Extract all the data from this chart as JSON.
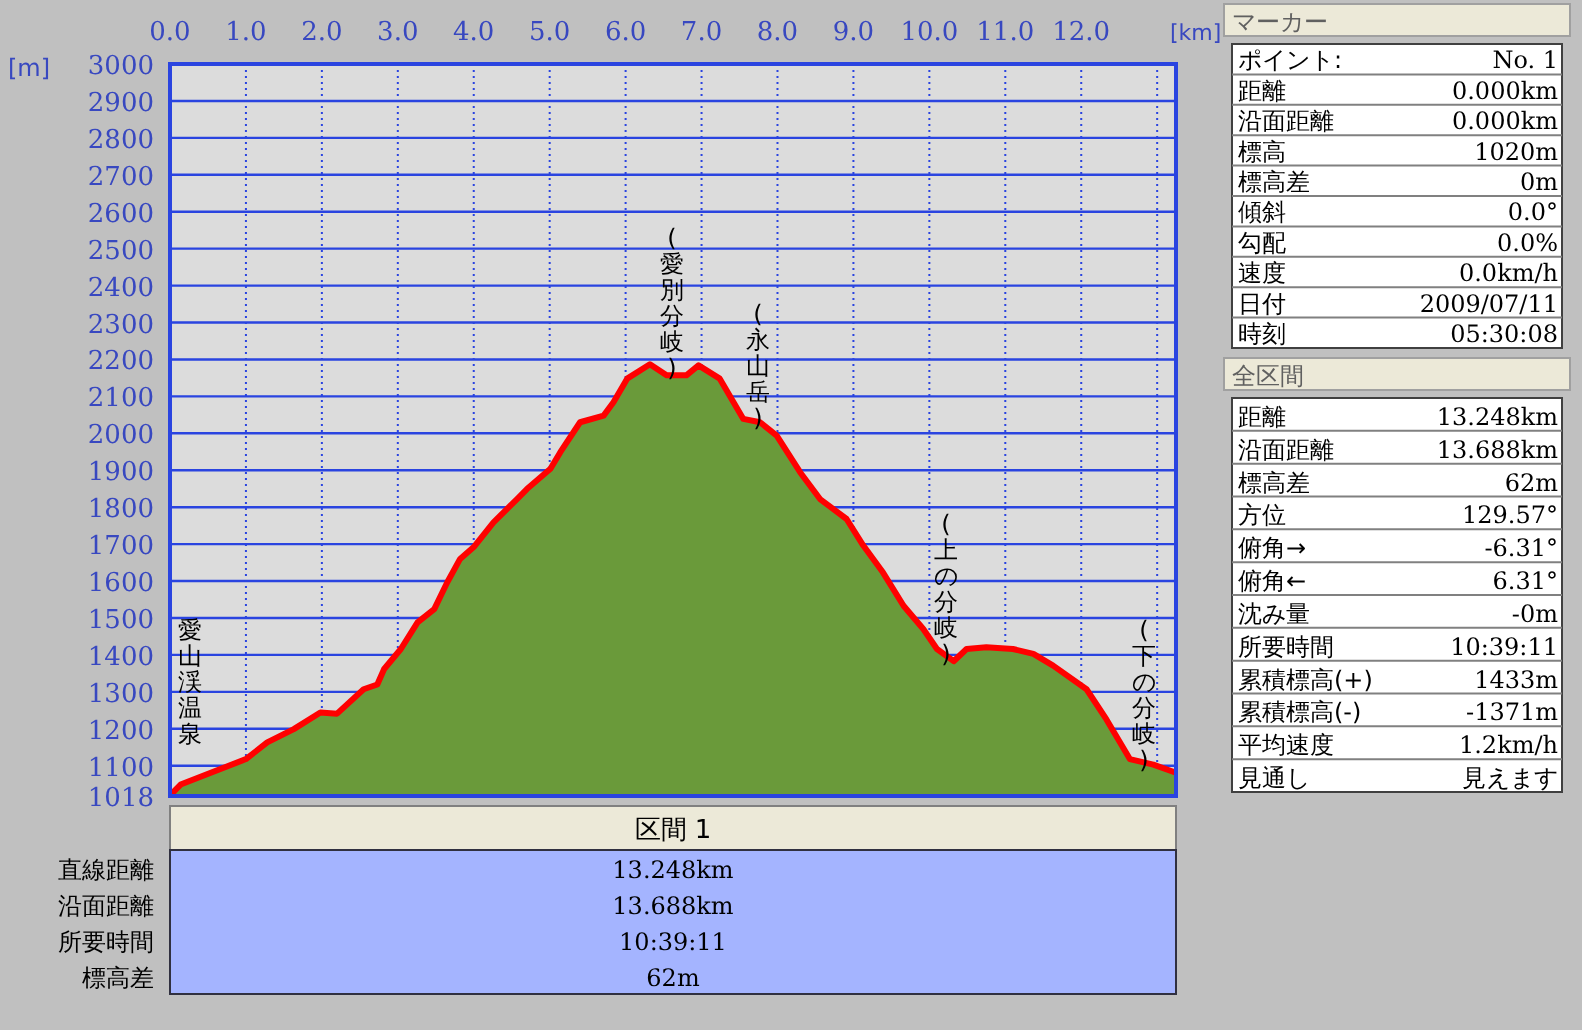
{
  "chart_data": [
    {
      "type": "area",
      "xlabel": "[km]",
      "ylabel": "[m]",
      "grid": true,
      "line_style": "solid",
      "xlim": [
        0,
        13.248
      ],
      "xticks": [
        {
          "value": 0,
          "label": "0.0"
        },
        {
          "value": 1,
          "label": "1.0"
        },
        {
          "value": 2,
          "label": "2.0"
        },
        {
          "value": 3,
          "label": "3.0"
        },
        {
          "value": 4,
          "label": "4.0"
        },
        {
          "value": 5,
          "label": "5.0"
        },
        {
          "value": 6,
          "label": "6.0"
        },
        {
          "value": 7,
          "label": "7.0"
        },
        {
          "value": 8,
          "label": "8.0"
        },
        {
          "value": 9,
          "label": "9.0"
        },
        {
          "value": 10,
          "label": "10.0"
        },
        {
          "value": 11,
          "label": "11.0"
        },
        {
          "value": 12,
          "label": "12.0"
        },
        {
          "value": 13,
          "label": null
        }
      ],
      "ylim": [
        1018,
        3000
      ],
      "yticks": [
        1018,
        1100,
        1200,
        1300,
        1400,
        1500,
        1600,
        1700,
        1800,
        1900,
        2000,
        2100,
        2200,
        2300,
        2400,
        2500,
        2600,
        2700,
        2800,
        2900,
        3000
      ],
      "series": [
        {
          "color": "#6a9a3a",
          "x": [
            0,
            0.14,
            1.0,
            1.28,
            1.63,
            1.98,
            2.2,
            2.55,
            2.73,
            2.82,
            3.04,
            3.26,
            3.48,
            3.65,
            3.82,
            4.0,
            4.26,
            4.57,
            4.7,
            5.01,
            5.14,
            5.4,
            5.71,
            5.84,
            6.02,
            6.32,
            6.54,
            6.8,
            6.96,
            7.24,
            7.55,
            7.77,
            7.99,
            8.3,
            8.56,
            8.91,
            9.13,
            9.39,
            9.66,
            9.92,
            10.1,
            10.32,
            10.49,
            10.75,
            11.1,
            11.37,
            11.63,
            12.07,
            12.33,
            12.64,
            12.95,
            13.248
          ],
          "values": [
            1020,
            1049,
            1118,
            1163,
            1199,
            1244,
            1241,
            1307,
            1320,
            1362,
            1416,
            1488,
            1524,
            1596,
            1660,
            1692,
            1759,
            1822,
            1849,
            1904,
            1949,
            2030,
            2048,
            2084,
            2148,
            2187,
            2157,
            2157,
            2184,
            2148,
            2039,
            2030,
            1994,
            1894,
            1822,
            1768,
            1696,
            1623,
            1533,
            1470,
            1416,
            1383,
            1416,
            1421,
            1416,
            1403,
            1371,
            1307,
            1226,
            1118,
            1103,
            1081
          ]
        }
      ],
      "annotations": [
        "愛山渓温泉",
        "(愛別分岐)",
        "(永山岳)",
        "(上の分岐)",
        "(下の分岐)"
      ]
    },
    {
      "type": "other",
      "title": "区間 1",
      "annotations": [
        "直線距離",
        "13.248km",
        "沿面距離",
        "13.688km",
        "所要時間",
        "10:39:11",
        "標高差",
        "62m"
      ]
    },
    {
      "type": "other",
      "title": "マーカー",
      "annotations": [
        "ポイント:",
        "No. 1",
        "距離",
        "0.000km",
        "沿面距離",
        "0.000km",
        "標高",
        "1020m",
        "標高差",
        "0m",
        "傾斜",
        "0.0°",
        "勾配",
        "0.0%",
        "速度",
        "0.0km/h",
        "日付",
        "2009/07/11",
        "時刻",
        "05:30:08"
      ]
    },
    {
      "type": "other",
      "title": "全区間",
      "annotations": [
        "距離",
        "13.248km",
        "沿面距離",
        "13.688km",
        "標高差",
        "62m",
        "方位",
        "129.57°",
        "俯角→",
        "-6.31°",
        "俯角←",
        "6.31°",
        "沈み量",
        "-0m",
        "所要時間",
        "10:39:11",
        "累積標高(+)",
        "1433m",
        "累積標高(-)",
        "-1371m",
        "平均速度",
        "1.2km/h",
        "見通し",
        "見えます"
      ]
    }
  ]
}
